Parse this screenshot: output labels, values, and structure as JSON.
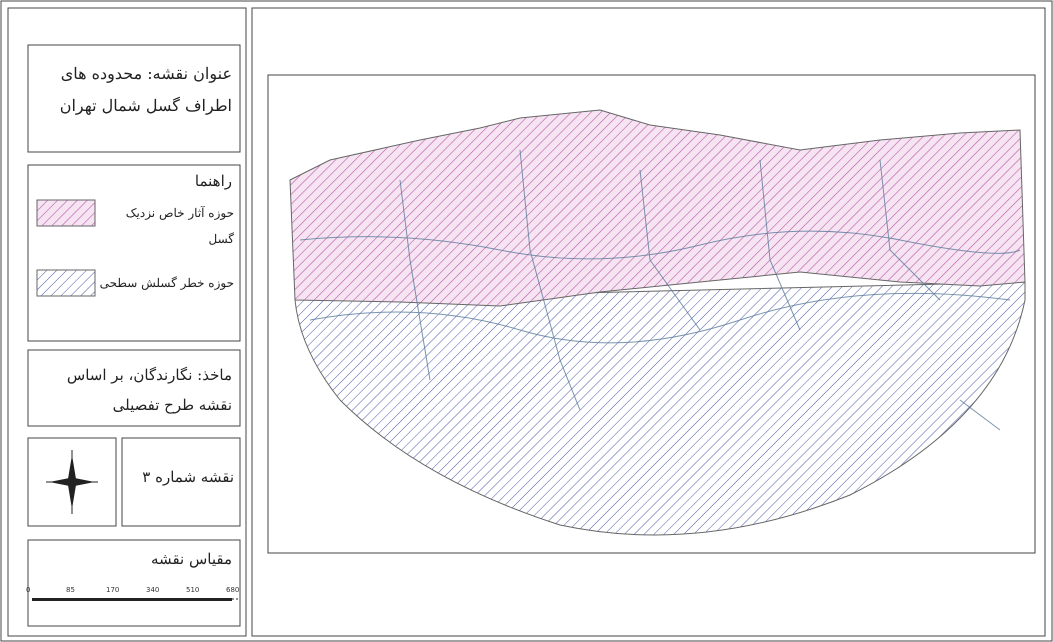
{
  "map_title": {
    "lines": [
      "عنوان نقشه: محدوده های",
      "اطراف گسل شمال تهران"
    ]
  },
  "legend": {
    "title": "راهنما",
    "items": [
      {
        "label": "حوزه آثار خاص نزدیک گسل",
        "color": "#b85aa8"
      },
      {
        "label": "حوزه خطر گسلش سطحی",
        "color": "#4a5aa8"
      }
    ]
  },
  "source": {
    "lines": [
      "ماخذ: نگارندگان، بر اساس",
      "نقشه طرح تفصیلی"
    ]
  },
  "map_number": "نقشه شماره ۳",
  "scale": {
    "title": "مقیاس نقشه",
    "labels": [
      "0",
      "85",
      "170",
      "340",
      "510",
      "680"
    ]
  }
}
